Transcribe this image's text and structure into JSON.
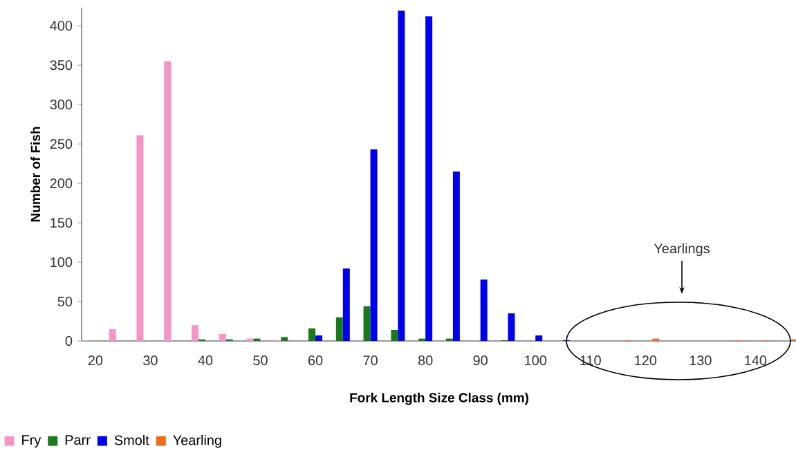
{
  "chart_data": {
    "type": "bar",
    "xlabel": "Fork Length Size Class (mm)",
    "ylabel": "Number of Fish",
    "categories": [
      "20",
      null,
      "30",
      null,
      "40",
      null,
      "50",
      null,
      "60",
      null,
      "70",
      null,
      "80",
      null,
      "90",
      null,
      "100",
      null,
      "110",
      null,
      "120",
      null,
      "130",
      null,
      "140",
      null
    ],
    "series": [
      {
        "name": "Fry",
        "color": "#f794c6",
        "values": [
          1,
          15,
          261,
          355,
          20,
          9,
          3,
          1,
          null,
          null,
          null,
          null,
          null,
          null,
          null,
          null,
          null,
          null,
          null,
          null,
          null,
          null,
          null,
          null,
          null,
          null
        ]
      },
      {
        "name": "Parr",
        "color": "#1a7a1a",
        "values": [
          null,
          null,
          null,
          null,
          2,
          2,
          3,
          5,
          16,
          30,
          44,
          14,
          3,
          3,
          null,
          1,
          null,
          null,
          null,
          null,
          null,
          null,
          null,
          null,
          null,
          null
        ]
      },
      {
        "name": "Smolt",
        "color": "#0000f0",
        "values": [
          null,
          null,
          null,
          null,
          null,
          null,
          null,
          null,
          7,
          92,
          243,
          419,
          412,
          215,
          78,
          35,
          7,
          1,
          null,
          null,
          null,
          null,
          null,
          null,
          null,
          null
        ]
      },
      {
        "name": "Yearling",
        "color": "#f26b1d",
        "values": [
          null,
          null,
          null,
          null,
          null,
          null,
          null,
          null,
          null,
          null,
          null,
          null,
          null,
          null,
          null,
          null,
          null,
          null,
          null,
          1,
          3,
          null,
          null,
          1,
          1,
          2
        ]
      }
    ],
    "ylim": [
      0,
      423
    ],
    "yticks": [
      0,
      50,
      100,
      150,
      200,
      250,
      300,
      350,
      400
    ],
    "grid": false,
    "legend": "bottom left",
    "annotations": [
      "Yearlings"
    ]
  }
}
